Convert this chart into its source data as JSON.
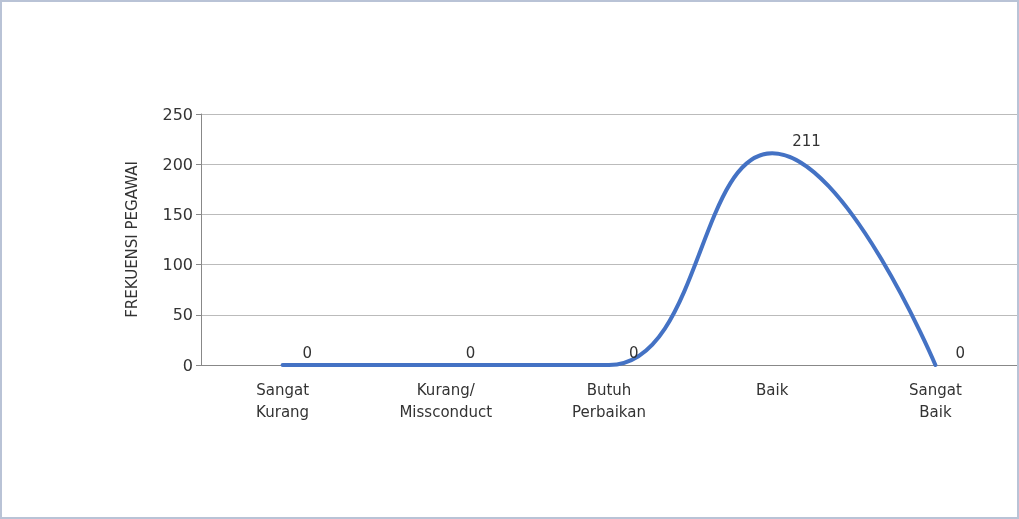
{
  "chart_data": {
    "type": "line",
    "ylabel": "FREKUENSI PEGAWAI",
    "categories": [
      "Sangat Kurang",
      "Kurang/ Missconduct",
      "Butuh Perbaikan",
      "Baik",
      "Sangat Baik"
    ],
    "series": [
      {
        "color": "#4472c4",
        "values": [
          0,
          0,
          0,
          211,
          0
        ]
      }
    ],
    "ylim": [
      0,
      250
    ],
    "yticks": [
      0,
      50,
      100,
      150,
      200,
      250
    ],
    "grid": "y",
    "data_labels": true,
    "marker": "none",
    "line_style": "solid"
  }
}
